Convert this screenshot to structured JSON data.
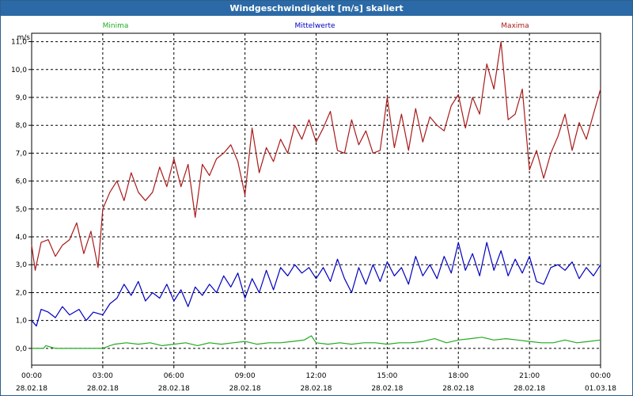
{
  "window": {
    "title": "Windgeschwindigkeit [m/s] skaliert"
  },
  "chart_data": {
    "type": "line",
    "ylabel": "m/s",
    "ylim": [
      -0.6,
      11.3
    ],
    "xlim": [
      0,
      24
    ],
    "yticks": [
      "0,0",
      "1,0",
      "2,0",
      "3,0",
      "4,0",
      "5,0",
      "6,0",
      "7,0",
      "8,0",
      "9,0",
      "10,0",
      "11,0"
    ],
    "xticks": [
      {
        "time": "00:00",
        "date": "28.02.18"
      },
      {
        "time": "03:00",
        "date": "28.02.18"
      },
      {
        "time": "06:00",
        "date": "28.02.18"
      },
      {
        "time": "09:00",
        "date": "28.02.18"
      },
      {
        "time": "12:00",
        "date": "28.02.18"
      },
      {
        "time": "15:00",
        "date": "28.02.18"
      },
      {
        "time": "18:00",
        "date": "28.02.18"
      },
      {
        "time": "21:00",
        "date": "28.02.18"
      },
      {
        "time": "00:00",
        "date": "01.03.18"
      }
    ],
    "grid": true,
    "series": [
      {
        "name": "Minima",
        "color": "#22aa22",
        "x": [
          0,
          0.5,
          0.6,
          1,
          2,
          3,
          3.3,
          3.5,
          4,
          4.5,
          5,
          5.5,
          6,
          6.5,
          7,
          7.5,
          8,
          8.5,
          9,
          9.5,
          10,
          10.5,
          11,
          11.5,
          11.8,
          12,
          12.5,
          13,
          13.5,
          14,
          14.5,
          15,
          15.5,
          16,
          16.5,
          17,
          17.5,
          18,
          18.5,
          19,
          19.5,
          20,
          20.5,
          21,
          21.5,
          22,
          22.5,
          23,
          23.5,
          24
        ],
        "values": [
          0.0,
          0.0,
          0.1,
          0.0,
          0.0,
          0.0,
          0.1,
          0.15,
          0.2,
          0.15,
          0.2,
          0.1,
          0.15,
          0.2,
          0.1,
          0.2,
          0.15,
          0.2,
          0.25,
          0.15,
          0.2,
          0.2,
          0.25,
          0.3,
          0.45,
          0.2,
          0.15,
          0.2,
          0.15,
          0.2,
          0.2,
          0.15,
          0.2,
          0.2,
          0.25,
          0.35,
          0.2,
          0.3,
          0.35,
          0.4,
          0.3,
          0.35,
          0.3,
          0.25,
          0.2,
          0.2,
          0.3,
          0.2,
          0.25,
          0.3
        ]
      },
      {
        "name": "Mittelwerte",
        "color": "#0000c0",
        "x": [
          0,
          0.2,
          0.4,
          0.7,
          1,
          1.3,
          1.6,
          2,
          2.3,
          2.6,
          3,
          3.3,
          3.6,
          3.9,
          4.2,
          4.5,
          4.8,
          5.1,
          5.4,
          5.7,
          6,
          6.3,
          6.6,
          6.9,
          7.2,
          7.5,
          7.8,
          8.1,
          8.4,
          8.7,
          9,
          9.3,
          9.6,
          9.9,
          10.2,
          10.5,
          10.8,
          11.1,
          11.4,
          11.7,
          12,
          12.3,
          12.6,
          12.9,
          13.2,
          13.5,
          13.8,
          14.1,
          14.4,
          14.7,
          15,
          15.3,
          15.6,
          15.9,
          16.2,
          16.5,
          16.8,
          17.1,
          17.4,
          17.7,
          18,
          18.3,
          18.6,
          18.9,
          19.2,
          19.5,
          19.8,
          20.1,
          20.4,
          20.7,
          21,
          21.3,
          21.6,
          21.9,
          22.2,
          22.5,
          22.8,
          23.1,
          23.4,
          23.7,
          24
        ],
        "values": [
          1.0,
          0.8,
          1.4,
          1.3,
          1.1,
          1.5,
          1.2,
          1.4,
          1.0,
          1.3,
          1.2,
          1.6,
          1.8,
          2.3,
          1.9,
          2.4,
          1.7,
          2.0,
          1.8,
          2.3,
          1.7,
          2.1,
          1.5,
          2.2,
          1.9,
          2.3,
          2.0,
          2.6,
          2.2,
          2.7,
          1.8,
          2.5,
          2.0,
          2.8,
          2.1,
          2.9,
          2.6,
          3.0,
          2.7,
          2.9,
          2.5,
          2.9,
          2.4,
          3.2,
          2.5,
          2.0,
          2.9,
          2.3,
          3.0,
          2.4,
          3.1,
          2.6,
          2.9,
          2.3,
          3.3,
          2.6,
          3.0,
          2.5,
          3.3,
          2.7,
          3.8,
          2.8,
          3.4,
          2.6,
          3.8,
          2.8,
          3.5,
          2.6,
          3.2,
          2.7,
          3.3,
          2.4,
          2.3,
          2.9,
          3.0,
          2.8,
          3.1,
          2.5,
          2.9,
          2.6,
          3.0
        ]
      },
      {
        "name": "Maxima",
        "color": "#aa1a1a",
        "x": [
          0,
          0.15,
          0.4,
          0.7,
          1,
          1.3,
          1.6,
          1.9,
          2.2,
          2.5,
          2.8,
          3,
          3.3,
          3.6,
          3.9,
          4.2,
          4.5,
          4.8,
          5.1,
          5.4,
          5.7,
          6,
          6.3,
          6.6,
          6.9,
          7.2,
          7.5,
          7.8,
          8.1,
          8.4,
          8.7,
          9,
          9.3,
          9.6,
          9.9,
          10.2,
          10.5,
          10.8,
          11.1,
          11.4,
          11.7,
          12,
          12.3,
          12.6,
          12.9,
          13.2,
          13.5,
          13.8,
          14.1,
          14.4,
          14.7,
          15,
          15.3,
          15.6,
          15.9,
          16.2,
          16.5,
          16.8,
          17.1,
          17.4,
          17.7,
          18,
          18.3,
          18.6,
          18.9,
          19.2,
          19.5,
          19.8,
          20.1,
          20.4,
          20.7,
          21,
          21.3,
          21.6,
          21.9,
          22.2,
          22.5,
          22.8,
          23.1,
          23.4,
          23.7,
          24
        ],
        "values": [
          3.7,
          2.8,
          3.8,
          3.9,
          3.3,
          3.7,
          3.9,
          4.5,
          3.4,
          4.2,
          2.9,
          5.0,
          5.6,
          6.0,
          5.3,
          6.3,
          5.6,
          5.3,
          5.6,
          6.5,
          5.8,
          6.8,
          5.8,
          6.6,
          4.7,
          6.6,
          6.2,
          6.8,
          7.0,
          7.3,
          6.7,
          5.5,
          7.9,
          6.3,
          7.2,
          6.7,
          7.5,
          7.0,
          8.0,
          7.5,
          8.2,
          7.4,
          7.9,
          8.5,
          7.1,
          7.0,
          8.2,
          7.3,
          7.8,
          7.0,
          7.1,
          9.0,
          7.2,
          8.4,
          7.1,
          8.6,
          7.4,
          8.3,
          8.0,
          7.8,
          8.7,
          9.1,
          7.9,
          9.0,
          8.4,
          10.2,
          9.3,
          11.0,
          8.2,
          8.4,
          9.3,
          6.4,
          7.1,
          6.1,
          7.0,
          7.6,
          8.4,
          7.1,
          8.1,
          7.5,
          8.4,
          9.3
        ]
      }
    ]
  }
}
